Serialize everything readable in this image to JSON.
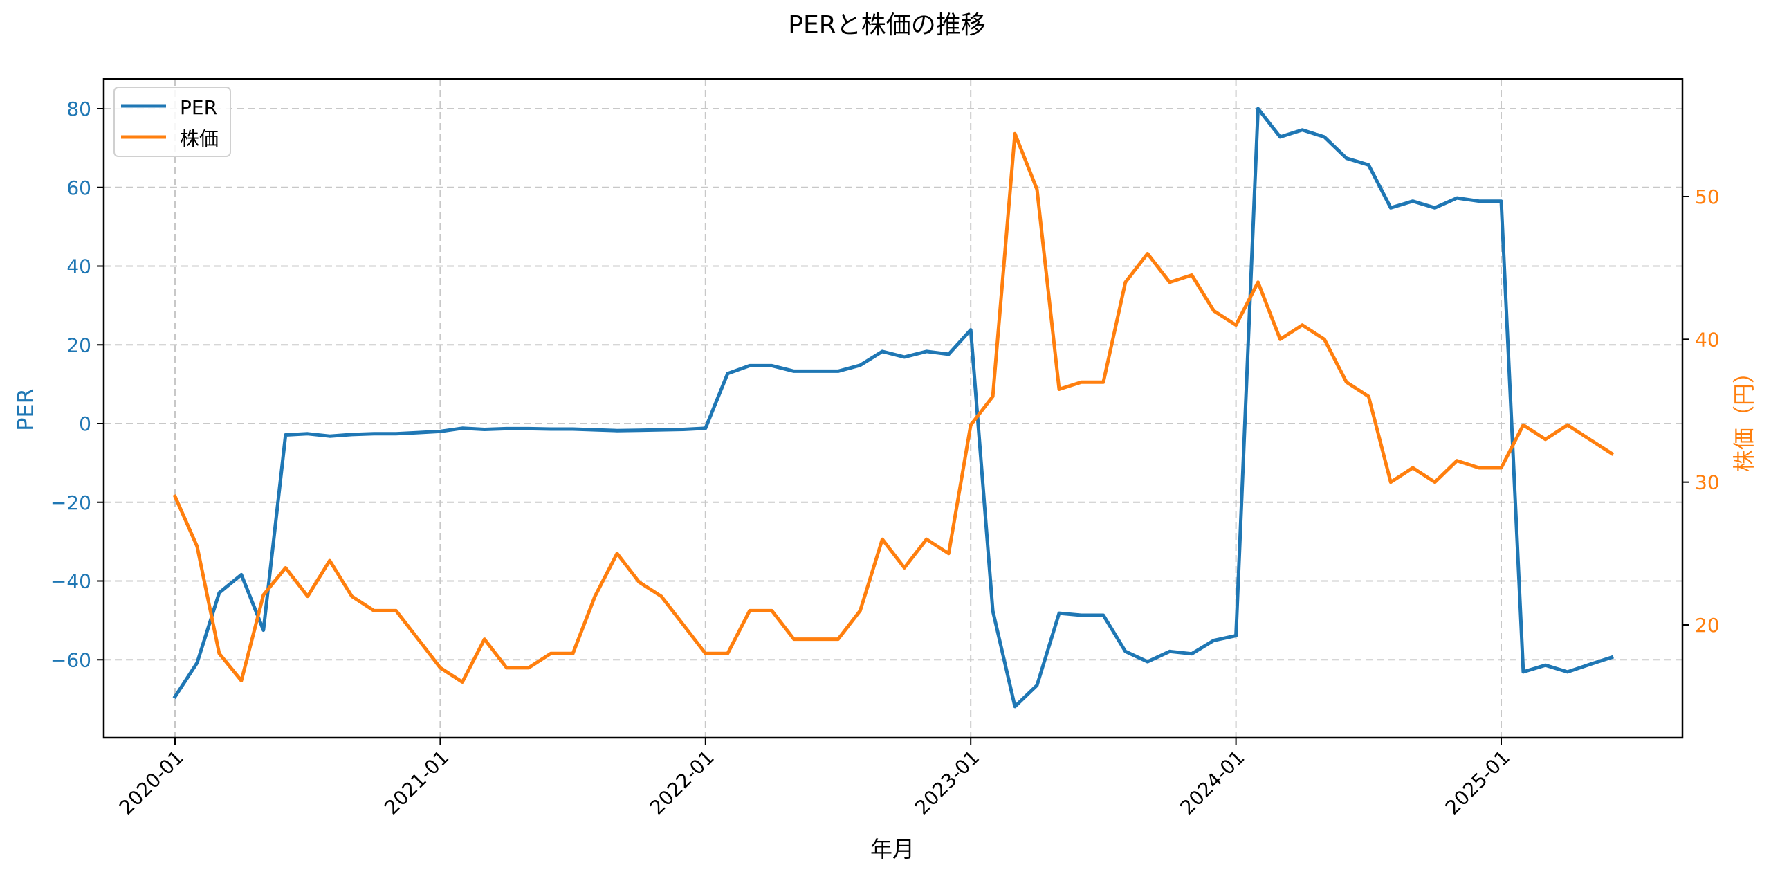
{
  "figure": {
    "title": "PERと株価の推移",
    "xlabel": "年月",
    "ylabel_left": "PER",
    "ylabel_right": "株価（円）"
  },
  "legend": {
    "position": "upper left",
    "items": [
      {
        "label": "PER",
        "color": "#1f77b4"
      },
      {
        "label": "株価",
        "color": "#ff7f0e"
      }
    ]
  },
  "colors": {
    "per": "#1f77b4",
    "price": "#ff7f0e",
    "grid": "#c8c8c8",
    "axis": "#000000"
  },
  "chart_data": {
    "type": "line",
    "title": "PERと株価の推移",
    "xlabel": "年月",
    "ylabel": "PER",
    "ylabel_right": "株価（円）",
    "grid": true,
    "legend_position": "upper left",
    "xticks": [
      "2020-01",
      "2021-01",
      "2022-01",
      "2023-01",
      "2024-01",
      "2025-01"
    ],
    "yticks_left": [
      -60,
      -40,
      -20,
      0,
      20,
      40,
      60,
      80
    ],
    "yticks_right": [
      20,
      30,
      40,
      50
    ],
    "ylim_left": [
      -80,
      88
    ],
    "ylim_right": [
      12,
      58
    ],
    "x": [
      "2020-01",
      "2020-02",
      "2020-03",
      "2020-04",
      "2020-05",
      "2020-06",
      "2020-07",
      "2020-08",
      "2020-09",
      "2020-10",
      "2020-11",
      "2020-12",
      "2021-01",
      "2021-02",
      "2021-03",
      "2021-04",
      "2021-05",
      "2021-06",
      "2021-07",
      "2021-08",
      "2021-09",
      "2021-10",
      "2021-11",
      "2021-12",
      "2022-01",
      "2022-02",
      "2022-03",
      "2022-04",
      "2022-05",
      "2022-06",
      "2022-07",
      "2022-08",
      "2022-09",
      "2022-10",
      "2022-11",
      "2022-12",
      "2023-01",
      "2023-02",
      "2023-03",
      "2023-04",
      "2023-05",
      "2023-06",
      "2023-07",
      "2023-08",
      "2023-09",
      "2023-10",
      "2023-11",
      "2023-12",
      "2024-01",
      "2024-02",
      "2024-03",
      "2024-04",
      "2024-05",
      "2024-06",
      "2024-07",
      "2024-08",
      "2024-09",
      "2024-10",
      "2024-11",
      "2024-12",
      "2025-01",
      "2025-02",
      "2025-03",
      "2025-04",
      "2025-05",
      "2025-06"
    ],
    "series": [
      {
        "name": "PER",
        "axis": "left",
        "color": "#1f77b4",
        "values": [
          -69.4,
          -60.8,
          -43.0,
          -38.4,
          -52.5,
          -2.9,
          -2.6,
          -3.2,
          -2.8,
          -2.6,
          -2.6,
          -2.3,
          -2.0,
          -1.2,
          -1.5,
          -1.3,
          -1.3,
          -1.4,
          -1.4,
          -1.6,
          -1.8,
          -1.7,
          -1.6,
          -1.5,
          -1.2,
          12.7,
          14.7,
          14.7,
          13.3,
          13.3,
          13.3,
          14.8,
          18.3,
          16.9,
          18.3,
          17.6,
          23.8,
          -47.6,
          -71.9,
          -66.5,
          -48.2,
          -48.7,
          -48.7,
          -57.9,
          -60.5,
          -57.9,
          -58.5,
          -55.1,
          -53.9,
          80.0,
          72.8,
          74.6,
          72.8,
          67.4,
          65.7,
          54.8,
          56.5,
          54.8,
          57.3,
          56.5,
          56.5,
          -63.1,
          -61.4,
          -63.1,
          -61.2,
          -59.4
        ]
      },
      {
        "name": "株価",
        "axis": "right",
        "color": "#ff7f0e",
        "values": [
          29.0,
          25.5,
          18.0,
          16.1,
          22.1,
          24.0,
          22.0,
          24.5,
          22.0,
          21.0,
          21.0,
          19.0,
          17.0,
          16.0,
          19.0,
          17.0,
          17.0,
          18.0,
          18.0,
          22.0,
          25.0,
          23.0,
          22.0,
          20.0,
          18.0,
          18.0,
          21.0,
          21.0,
          19.0,
          19.0,
          19.0,
          21.0,
          26.0,
          24.0,
          26.0,
          25.0,
          34.0,
          36.0,
          54.4,
          50.5,
          36.5,
          37.0,
          37.0,
          44.0,
          46.0,
          44.0,
          44.5,
          42.0,
          41.0,
          44.0,
          40.0,
          41.0,
          40.0,
          37.0,
          36.0,
          30.0,
          31.0,
          30.0,
          31.5,
          31.0,
          31.0,
          34.0,
          33.0,
          34.0,
          33.0,
          32.0
        ]
      }
    ]
  }
}
